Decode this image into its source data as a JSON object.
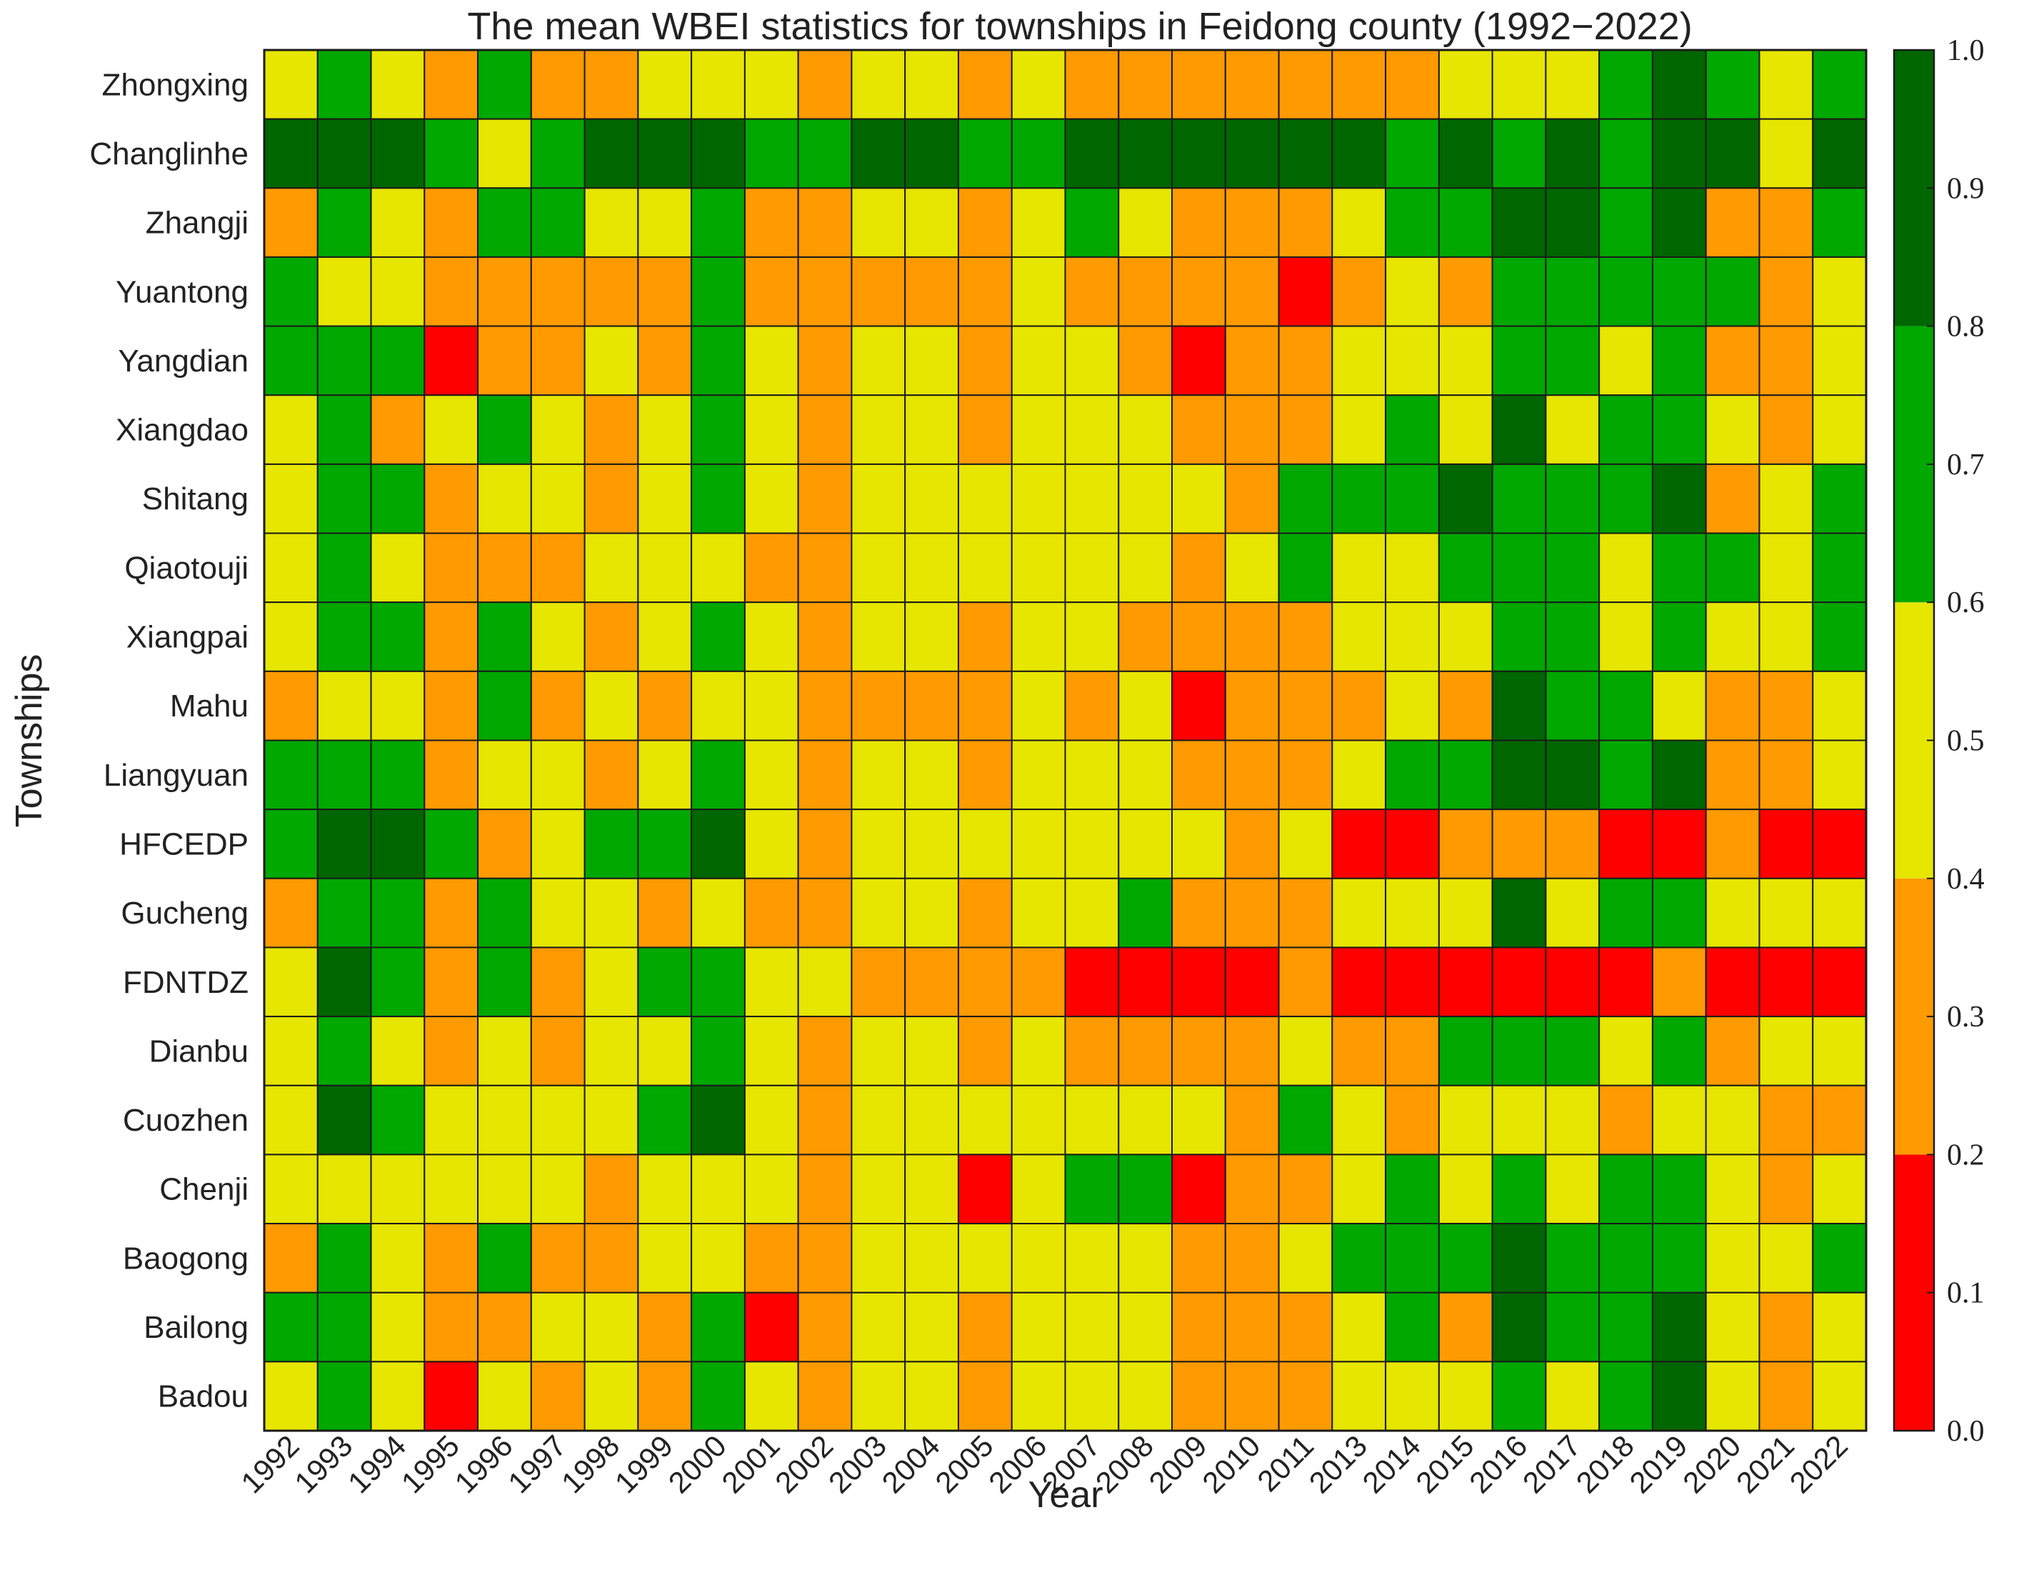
{
  "chart_data": {
    "type": "heatmap",
    "title": "The mean WBEI statistics for townships in Feidong county (1992−2022)",
    "xlabel": "Year",
    "ylabel": "Townships",
    "x": [
      "1992",
      "1993",
      "1994",
      "1995",
      "1996",
      "1997",
      "1998",
      "1999",
      "2000",
      "2001",
      "2002",
      "2003",
      "2004",
      "2005",
      "2006",
      "2007",
      "2008",
      "2009",
      "2010",
      "2011",
      "2013",
      "2014",
      "2015",
      "2016",
      "2017",
      "2018",
      "2019",
      "2020",
      "2021",
      "2022"
    ],
    "y": [
      "Zhongxing",
      "Changlinhe",
      "Zhangji",
      "Yuantong",
      "Yangdian",
      "Xiangdao",
      "Shitang",
      "Qiaotouji",
      "Xiangpai",
      "Mahu",
      "Liangyuan",
      "HFCEDP",
      "Gucheng",
      "FDNTDZ",
      "Dianbu",
      "Cuozhen",
      "Chenji",
      "Baogong",
      "Bailong",
      "Badou"
    ],
    "value_note": "cell values are the colorbar bin midpoints (0.1 = 0.0-0.2, 0.3 = 0.2-0.4, 0.5 = 0.4-0.6, 0.7 = 0.6-0.8, 0.9 = 0.8-1.0)",
    "values": [
      [
        0.5,
        0.7,
        0.5,
        0.3,
        0.7,
        0.3,
        0.3,
        0.5,
        0.5,
        0.5,
        0.3,
        0.5,
        0.5,
        0.3,
        0.5,
        0.3,
        0.3,
        0.3,
        0.3,
        0.3,
        0.3,
        0.3,
        0.5,
        0.5,
        0.5,
        0.7,
        0.9,
        0.7,
        0.5,
        0.7
      ],
      [
        0.9,
        0.9,
        0.9,
        0.7,
        0.5,
        0.7,
        0.9,
        0.9,
        0.9,
        0.7,
        0.7,
        0.9,
        0.9,
        0.7,
        0.7,
        0.9,
        0.9,
        0.9,
        0.9,
        0.9,
        0.9,
        0.7,
        0.9,
        0.7,
        0.9,
        0.7,
        0.9,
        0.9,
        0.5,
        0.9
      ],
      [
        0.3,
        0.7,
        0.5,
        0.3,
        0.7,
        0.7,
        0.5,
        0.5,
        0.7,
        0.3,
        0.3,
        0.5,
        0.5,
        0.3,
        0.5,
        0.7,
        0.5,
        0.3,
        0.3,
        0.3,
        0.5,
        0.7,
        0.7,
        0.9,
        0.9,
        0.7,
        0.9,
        0.3,
        0.3,
        0.7
      ],
      [
        0.7,
        0.5,
        0.5,
        0.3,
        0.3,
        0.3,
        0.3,
        0.3,
        0.7,
        0.3,
        0.3,
        0.3,
        0.3,
        0.3,
        0.5,
        0.3,
        0.3,
        0.3,
        0.3,
        0.1,
        0.3,
        0.5,
        0.3,
        0.7,
        0.7,
        0.7,
        0.7,
        0.7,
        0.3,
        0.5
      ],
      [
        0.7,
        0.7,
        0.7,
        0.1,
        0.3,
        0.3,
        0.5,
        0.3,
        0.7,
        0.5,
        0.3,
        0.5,
        0.5,
        0.3,
        0.5,
        0.5,
        0.3,
        0.1,
        0.3,
        0.3,
        0.5,
        0.5,
        0.5,
        0.7,
        0.7,
        0.5,
        0.7,
        0.3,
        0.3,
        0.5
      ],
      [
        0.5,
        0.7,
        0.3,
        0.5,
        0.7,
        0.5,
        0.3,
        0.5,
        0.7,
        0.5,
        0.3,
        0.5,
        0.5,
        0.3,
        0.5,
        0.5,
        0.5,
        0.3,
        0.3,
        0.3,
        0.5,
        0.7,
        0.5,
        0.9,
        0.5,
        0.7,
        0.7,
        0.5,
        0.3,
        0.5
      ],
      [
        0.5,
        0.7,
        0.7,
        0.3,
        0.5,
        0.5,
        0.3,
        0.5,
        0.7,
        0.5,
        0.3,
        0.5,
        0.5,
        0.5,
        0.5,
        0.5,
        0.5,
        0.5,
        0.3,
        0.7,
        0.7,
        0.7,
        0.9,
        0.7,
        0.7,
        0.7,
        0.9,
        0.3,
        0.5,
        0.7
      ],
      [
        0.5,
        0.7,
        0.5,
        0.3,
        0.3,
        0.3,
        0.5,
        0.5,
        0.5,
        0.3,
        0.3,
        0.5,
        0.5,
        0.5,
        0.5,
        0.5,
        0.5,
        0.3,
        0.5,
        0.7,
        0.5,
        0.5,
        0.7,
        0.7,
        0.7,
        0.5,
        0.7,
        0.7,
        0.5,
        0.7
      ],
      [
        0.5,
        0.7,
        0.7,
        0.3,
        0.7,
        0.5,
        0.3,
        0.5,
        0.7,
        0.5,
        0.3,
        0.5,
        0.5,
        0.3,
        0.5,
        0.5,
        0.3,
        0.3,
        0.3,
        0.3,
        0.5,
        0.5,
        0.5,
        0.7,
        0.7,
        0.5,
        0.7,
        0.5,
        0.5,
        0.7
      ],
      [
        0.3,
        0.5,
        0.5,
        0.3,
        0.7,
        0.3,
        0.5,
        0.3,
        0.5,
        0.5,
        0.3,
        0.3,
        0.3,
        0.3,
        0.5,
        0.3,
        0.5,
        0.1,
        0.3,
        0.3,
        0.3,
        0.5,
        0.3,
        0.9,
        0.7,
        0.7,
        0.5,
        0.3,
        0.3,
        0.5
      ],
      [
        0.7,
        0.7,
        0.7,
        0.3,
        0.5,
        0.5,
        0.3,
        0.5,
        0.7,
        0.5,
        0.3,
        0.5,
        0.5,
        0.3,
        0.5,
        0.5,
        0.5,
        0.3,
        0.3,
        0.3,
        0.5,
        0.7,
        0.7,
        0.9,
        0.9,
        0.7,
        0.9,
        0.3,
        0.3,
        0.5
      ],
      [
        0.7,
        0.9,
        0.9,
        0.7,
        0.3,
        0.5,
        0.7,
        0.7,
        0.9,
        0.5,
        0.3,
        0.5,
        0.5,
        0.5,
        0.5,
        0.5,
        0.5,
        0.5,
        0.3,
        0.5,
        0.1,
        0.1,
        0.3,
        0.3,
        0.3,
        0.1,
        0.1,
        0.3,
        0.1,
        0.1
      ],
      [
        0.3,
        0.7,
        0.7,
        0.3,
        0.7,
        0.5,
        0.5,
        0.3,
        0.5,
        0.3,
        0.3,
        0.5,
        0.5,
        0.3,
        0.5,
        0.5,
        0.7,
        0.3,
        0.3,
        0.3,
        0.5,
        0.5,
        0.5,
        0.9,
        0.5,
        0.7,
        0.7,
        0.5,
        0.5,
        0.5
      ],
      [
        0.5,
        0.9,
        0.7,
        0.3,
        0.7,
        0.3,
        0.5,
        0.7,
        0.7,
        0.5,
        0.5,
        0.3,
        0.3,
        0.3,
        0.3,
        0.1,
        0.1,
        0.1,
        0.1,
        0.3,
        0.1,
        0.1,
        0.1,
        0.1,
        0.1,
        0.1,
        0.3,
        0.1,
        0.1,
        0.1
      ],
      [
        0.5,
        0.7,
        0.5,
        0.3,
        0.5,
        0.3,
        0.5,
        0.5,
        0.7,
        0.5,
        0.3,
        0.5,
        0.5,
        0.3,
        0.5,
        0.3,
        0.3,
        0.3,
        0.3,
        0.5,
        0.3,
        0.3,
        0.7,
        0.7,
        0.7,
        0.5,
        0.7,
        0.3,
        0.5,
        0.5
      ],
      [
        0.5,
        0.9,
        0.7,
        0.5,
        0.5,
        0.5,
        0.5,
        0.7,
        0.9,
        0.5,
        0.3,
        0.5,
        0.5,
        0.5,
        0.5,
        0.5,
        0.5,
        0.5,
        0.3,
        0.7,
        0.5,
        0.3,
        0.5,
        0.5,
        0.5,
        0.3,
        0.5,
        0.5,
        0.3,
        0.3
      ],
      [
        0.5,
        0.5,
        0.5,
        0.5,
        0.5,
        0.5,
        0.3,
        0.5,
        0.5,
        0.5,
        0.3,
        0.5,
        0.5,
        0.1,
        0.5,
        0.7,
        0.7,
        0.1,
        0.3,
        0.3,
        0.5,
        0.7,
        0.5,
        0.7,
        0.5,
        0.7,
        0.7,
        0.5,
        0.3,
        0.5
      ],
      [
        0.3,
        0.7,
        0.5,
        0.3,
        0.7,
        0.3,
        0.3,
        0.5,
        0.5,
        0.3,
        0.3,
        0.5,
        0.5,
        0.5,
        0.5,
        0.5,
        0.5,
        0.3,
        0.3,
        0.5,
        0.7,
        0.7,
        0.7,
        0.9,
        0.7,
        0.7,
        0.7,
        0.5,
        0.5,
        0.7
      ],
      [
        0.7,
        0.7,
        0.5,
        0.3,
        0.3,
        0.5,
        0.5,
        0.3,
        0.7,
        0.1,
        0.3,
        0.5,
        0.5,
        0.3,
        0.5,
        0.5,
        0.5,
        0.3,
        0.3,
        0.3,
        0.5,
        0.7,
        0.3,
        0.9,
        0.7,
        0.7,
        0.9,
        0.5,
        0.3,
        0.5
      ],
      [
        0.5,
        0.7,
        0.5,
        0.1,
        0.5,
        0.3,
        0.5,
        0.3,
        0.7,
        0.5,
        0.3,
        0.5,
        0.5,
        0.3,
        0.5,
        0.5,
        0.5,
        0.3,
        0.3,
        0.3,
        0.5,
        0.5,
        0.5,
        0.7,
        0.5,
        0.7,
        0.9,
        0.5,
        0.3,
        0.5
      ]
    ],
    "colorbar": {
      "range": [
        0.0,
        1.0
      ],
      "ticks": [
        "0.0",
        "0.1",
        "0.2",
        "0.3",
        "0.4",
        "0.5",
        "0.6",
        "0.7",
        "0.8",
        "0.9",
        "1.0"
      ],
      "bins": [
        {
          "from": 0.0,
          "to": 0.2,
          "color": "#ff0000"
        },
        {
          "from": 0.2,
          "to": 0.4,
          "color": "#ff9a00"
        },
        {
          "from": 0.4,
          "to": 0.6,
          "color": "#e6e600"
        },
        {
          "from": 0.6,
          "to": 0.8,
          "color": "#00a800"
        },
        {
          "from": 0.8,
          "to": 1.0,
          "color": "#006600"
        }
      ]
    },
    "grid": true
  }
}
